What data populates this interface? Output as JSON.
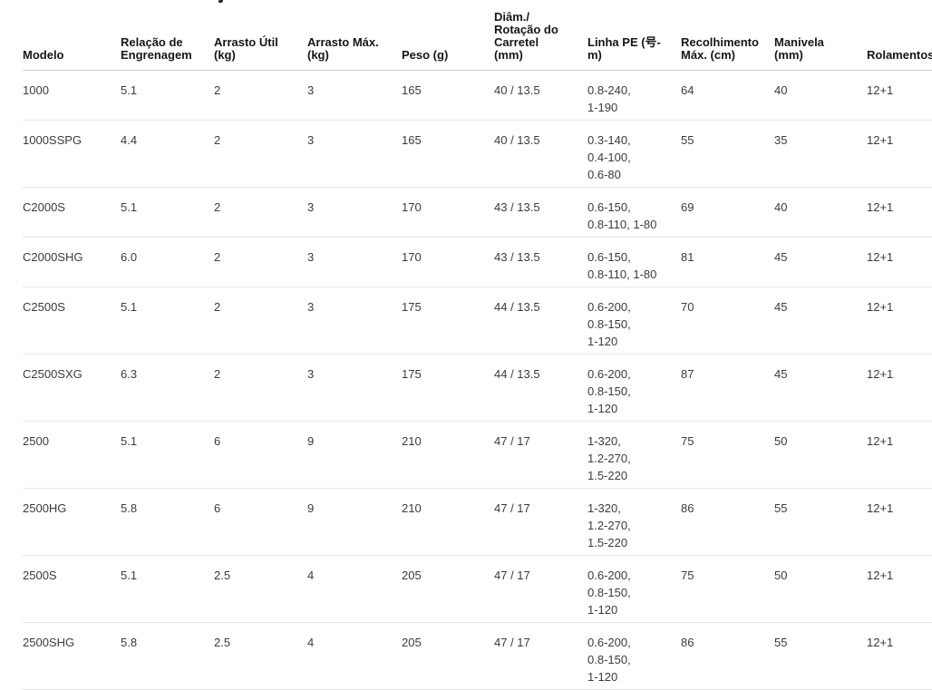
{
  "page": {
    "background_color": "#ffffff",
    "header_text_color": "#161616",
    "body_text_color": "#3b3b3b",
    "header_border_color": "#cdcdcd",
    "row_border_color": "#e8e8e8"
  },
  "table": {
    "columns": [
      {
        "id": "modelo",
        "label": "Modelo"
      },
      {
        "id": "relacao-engrenagem",
        "label": "Relação de\nEngrenagem"
      },
      {
        "id": "arrasto-util",
        "label": "Arrasto Útil\n(kg)"
      },
      {
        "id": "arrasto-max",
        "label": "Arrasto Máx.\n(kg)"
      },
      {
        "id": "peso",
        "label": "Peso (g)"
      },
      {
        "id": "diam-rotacao-carretel",
        "label": "Diâm./\nRotação do\nCarretel\n(mm)"
      },
      {
        "id": "linha-pe",
        "label": "Linha PE (号-\nm)"
      },
      {
        "id": "recolhimento-max",
        "label": "Recolhimento\nMáx. (cm)"
      },
      {
        "id": "manivela",
        "label": "Manivela\n(mm)"
      },
      {
        "id": "rolamentos",
        "label": "Rolamentos"
      }
    ],
    "rows": [
      {
        "cells": [
          "1000",
          "5.1",
          "2",
          "3",
          "165",
          "40 / 13.5",
          "0.8-240,\n1-190",
          "64",
          "40",
          "12+1"
        ]
      },
      {
        "cells": [
          "1000SSPG",
          "4.4",
          "2",
          "3",
          "165",
          "40 / 13.5",
          "0.3-140,\n0.4-100,\n0.6-80",
          "55",
          "35",
          "12+1"
        ]
      },
      {
        "cells": [
          "C2000S",
          "5.1",
          "2",
          "3",
          "170",
          "43 / 13.5",
          "0.6-150,\n0.8-110, 1-80",
          "69",
          "40",
          "12+1"
        ]
      },
      {
        "cells": [
          "C2000SHG",
          "6.0",
          "2",
          "3",
          "170",
          "43 / 13.5",
          "0.6-150,\n0.8-110, 1-80",
          "81",
          "45",
          "12+1"
        ]
      },
      {
        "cells": [
          "C2500S",
          "5.1",
          "2",
          "3",
          "175",
          "44 / 13.5",
          "0.6-200,\n0.8-150,\n1-120",
          "70",
          "45",
          "12+1"
        ]
      },
      {
        "cells": [
          "C2500SXG",
          "6.3",
          "2",
          "3",
          "175",
          "44 / 13.5",
          "0.6-200,\n0.8-150,\n1-120",
          "87",
          "45",
          "12+1"
        ]
      },
      {
        "cells": [
          "2500",
          "5.1",
          "6",
          "9",
          "210",
          "47 / 17",
          "1-320,\n1.2-270,\n1.5-220",
          "75",
          "50",
          "12+1"
        ]
      },
      {
        "cells": [
          "2500HG",
          "5.8",
          "6",
          "9",
          "210",
          "47 / 17",
          "1-320,\n1.2-270,\n1.5-220",
          "86",
          "55",
          "12+1"
        ]
      },
      {
        "cells": [
          "2500S",
          "5.1",
          "2.5",
          "4",
          "205",
          "47 / 17",
          "0.6-200,\n0.8-150,\n1-120",
          "75",
          "50",
          "12+1"
        ]
      },
      {
        "cells": [
          "2500SHG",
          "5.8",
          "2.5",
          "4",
          "205",
          "47 / 17",
          "0.6-200,\n0.8-150,\n1-120",
          "86",
          "55",
          "12+1"
        ]
      }
    ]
  }
}
